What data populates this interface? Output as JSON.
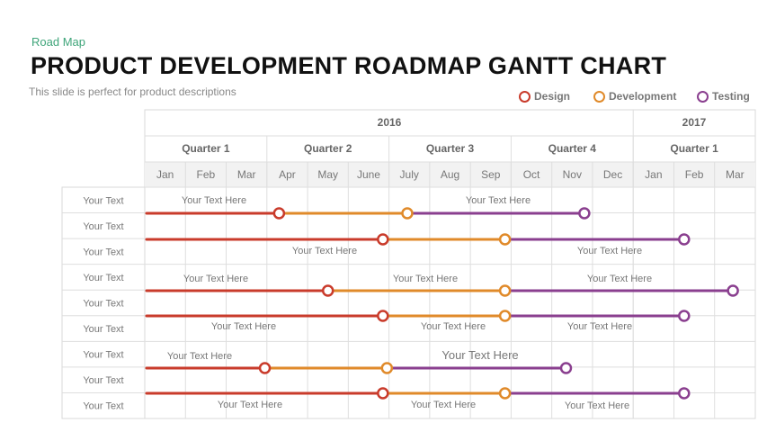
{
  "header": {
    "kicker": "Road Map",
    "title": "PRODUCT DEVELOPMENT ROADMAP GANTT CHART",
    "subtitle": "This slide is perfect for product descriptions"
  },
  "legend": [
    {
      "label": "Design",
      "color": "#c93b2b"
    },
    {
      "label": "Development",
      "color": "#e08a2a"
    },
    {
      "label": "Testing",
      "color": "#8a3f8f"
    }
  ],
  "chart_data": {
    "type": "gantt",
    "years": [
      {
        "label": "2016",
        "span": 12
      },
      {
        "label": "2017",
        "span": 3
      }
    ],
    "quarters": [
      "Quarter 1",
      "Quarter 2",
      "Quarter 3",
      "Quarter 4",
      "Quarter 1"
    ],
    "months": [
      "Jan",
      "Feb",
      "Mar",
      "Apr",
      "May",
      "June",
      "July",
      "Aug",
      "Sep",
      "Oct",
      "Nov",
      "Dec",
      "Jan",
      "Feb",
      "Mar"
    ],
    "row_labels": [
      "Your Text",
      "Your Text",
      "Your Text",
      "Your Text",
      "Your Text",
      "Your Text",
      "Your Text",
      "Your Text",
      "Your Text"
    ],
    "bars": [
      {
        "start": 0.0,
        "design_end": 3.3,
        "dev_end": 6.45,
        "test_end": 10.8
      },
      {
        "start": 0.0,
        "design_end": 5.85,
        "dev_end": 8.85,
        "test_end": 13.25
      },
      {
        "start": 0.0,
        "design_end": 4.5,
        "dev_end": 8.85,
        "test_end": 14.45
      },
      {
        "start": 0.0,
        "design_end": 5.85,
        "dev_end": 8.85,
        "test_end": 13.25
      },
      {
        "start": 0.0,
        "design_end": 2.95,
        "dev_end": 5.95,
        "test_end": 10.35
      },
      {
        "start": 0.0,
        "design_end": 5.85,
        "dev_end": 8.85,
        "test_end": 13.25
      }
    ],
    "bar_labels": [
      "Your Text Here",
      "Your Text Here",
      "Your Text Here",
      "Your Text Here",
      "Your Text Here",
      "Your Text Here",
      "Your Text Here",
      "Your Text Here",
      "Your Text Here",
      "Your Text Here",
      "Your Text Here",
      "Your Text Here",
      "Your Text Here",
      "Your Text Here",
      "Your Text Here"
    ],
    "big_label": "Your Text Here"
  }
}
